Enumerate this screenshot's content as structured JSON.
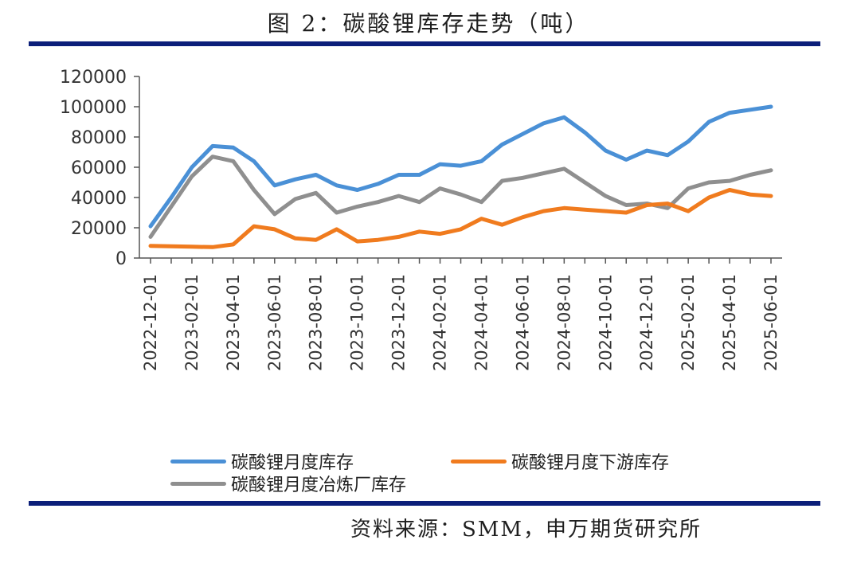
{
  "title": "图 2：碳酸锂库存走势（吨）",
  "source": "资料来源：SMM，申万期货研究所",
  "chart_data": {
    "type": "line",
    "title": "图 2：碳酸锂库存走势（吨）",
    "xlabel": "",
    "ylabel": "",
    "ylim": [
      0,
      120000
    ],
    "yticks": [
      "0",
      "20000",
      "40000",
      "60000",
      "80000",
      "100000",
      "120000"
    ],
    "xtick_labels": [
      "2022-12-01",
      "2023-02-01",
      "2023-04-01",
      "2023-06-01",
      "2023-08-01",
      "2023-10-01",
      "2023-12-01",
      "2024-02-01",
      "2024-04-01",
      "2024-06-01",
      "2024-08-01",
      "2024-10-01",
      "2024-12-01",
      "2025-02-01",
      "2025-04-01",
      "2025-06-01"
    ],
    "x": [
      "2022-12",
      "2023-01",
      "2023-02",
      "2023-03",
      "2023-04",
      "2023-05",
      "2023-06",
      "2023-07",
      "2023-08",
      "2023-09",
      "2023-10",
      "2023-11",
      "2023-12",
      "2024-01",
      "2024-02",
      "2024-03",
      "2024-04",
      "2024-05",
      "2024-06",
      "2024-07",
      "2024-08",
      "2024-09",
      "2024-10",
      "2024-11",
      "2024-12",
      "2025-01",
      "2025-02",
      "2025-03",
      "2025-04",
      "2025-05",
      "2025-06"
    ],
    "grid": false,
    "legend_position": "bottom",
    "series": [
      {
        "name": "碳酸锂月度库存",
        "color": "#4a90d6",
        "values": [
          21000,
          40000,
          60000,
          74000,
          73000,
          64000,
          48000,
          52000,
          55000,
          48000,
          45000,
          49000,
          55000,
          55000,
          62000,
          61000,
          64000,
          75000,
          82000,
          89000,
          93000,
          83000,
          71000,
          65000,
          71000,
          68000,
          77000,
          90000,
          96000,
          98000,
          100000
        ]
      },
      {
        "name": "碳酸锂月度下游库存",
        "color": "#f07b1e",
        "values": [
          8000,
          7800,
          7500,
          7200,
          9000,
          21000,
          19000,
          13000,
          12000,
          19000,
          11000,
          12000,
          14000,
          17500,
          16000,
          19000,
          26000,
          22000,
          27000,
          31000,
          33000,
          32000,
          31000,
          30000,
          35000,
          36000,
          31000,
          40000,
          45000,
          42000,
          41000
        ]
      },
      {
        "name": "碳酸锂月度冶炼厂库存",
        "color": "#8f8f8f",
        "values": [
          14000,
          34000,
          54000,
          67000,
          64000,
          45000,
          29000,
          39000,
          43000,
          30000,
          34000,
          37000,
          41000,
          37000,
          46000,
          42000,
          37000,
          51000,
          53000,
          56000,
          59000,
          50000,
          41000,
          35000,
          36000,
          33000,
          46000,
          50000,
          51000,
          55000,
          58000
        ]
      }
    ]
  }
}
